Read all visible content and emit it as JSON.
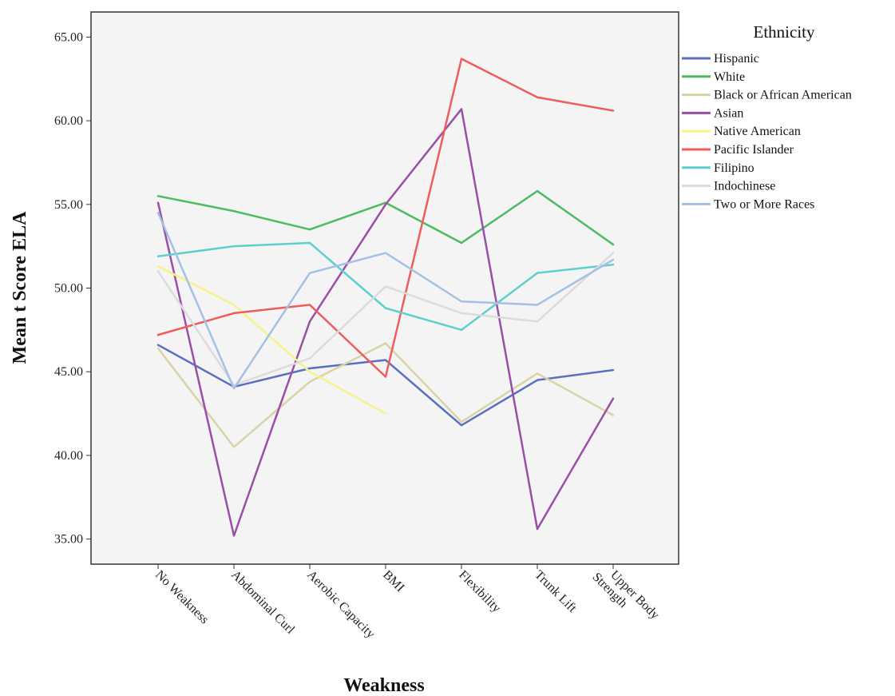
{
  "chart_data": {
    "type": "line",
    "xlabel": "Weakness",
    "ylabel": "Mean t Score ELA",
    "ylim": [
      33.5,
      66.5
    ],
    "yticks": [
      35,
      40,
      45,
      50,
      55,
      60,
      65
    ],
    "ytick_labels": [
      "35.00",
      "40.00",
      "45.00",
      "50.00",
      "55.00",
      "60.00",
      "65.00"
    ],
    "categories": [
      "No Weakness",
      "Abdominal Curl",
      "Aerobic Capacity",
      "BMI",
      "Flexibility",
      "Trunk Lift",
      "Upper Body Strength"
    ],
    "category_label_lines": [
      [
        "No Weakness"
      ],
      [
        "Abdominal Curl"
      ],
      [
        "Aerobic Capacity"
      ],
      [
        "BMI"
      ],
      [
        "Flexibility"
      ],
      [
        "Trunk Lift"
      ],
      [
        "Upper Body",
        "Strength"
      ]
    ],
    "legend": {
      "title": "Ethnicity",
      "position": "right"
    },
    "grid": false,
    "series": [
      {
        "name": "Hispanic",
        "color": "#5b6fbf",
        "values": [
          46.6,
          44.1,
          45.2,
          45.7,
          41.8,
          44.5,
          45.1
        ]
      },
      {
        "name": "White",
        "color": "#4cbc5e",
        "values": [
          55.5,
          54.6,
          53.5,
          55.1,
          52.7,
          55.8,
          52.6
        ]
      },
      {
        "name": "Black or African American",
        "color": "#d8d4a8",
        "values": [
          46.4,
          40.5,
          44.4,
          46.7,
          42.0,
          44.9,
          42.4
        ]
      },
      {
        "name": "Asian",
        "color": "#9b4ea8",
        "values": [
          55.1,
          35.2,
          48.0,
          55.0,
          60.7,
          35.6,
          43.4
        ]
      },
      {
        "name": "Native American",
        "color": "#f7f28a",
        "values": [
          51.3,
          49.0,
          45.0,
          42.5,
          null,
          null,
          null
        ]
      },
      {
        "name": "Pacific Islander",
        "color": "#ee5c5c",
        "values": [
          47.2,
          48.5,
          49.0,
          44.7,
          63.7,
          61.4,
          60.6
        ]
      },
      {
        "name": "Filipino",
        "color": "#5ccfcf",
        "values": [
          51.9,
          52.5,
          52.7,
          48.8,
          47.5,
          50.9,
          51.4
        ]
      },
      {
        "name": "Indochinese",
        "color": "#dcdcdc",
        "values": [
          51.0,
          44.2,
          45.8,
          50.1,
          48.5,
          48.0,
          52.1
        ]
      },
      {
        "name": "Two or More Races",
        "color": "#a4c0e2",
        "values": [
          54.5,
          44.0,
          50.9,
          52.1,
          49.2,
          49.0,
          51.7
        ]
      }
    ]
  }
}
